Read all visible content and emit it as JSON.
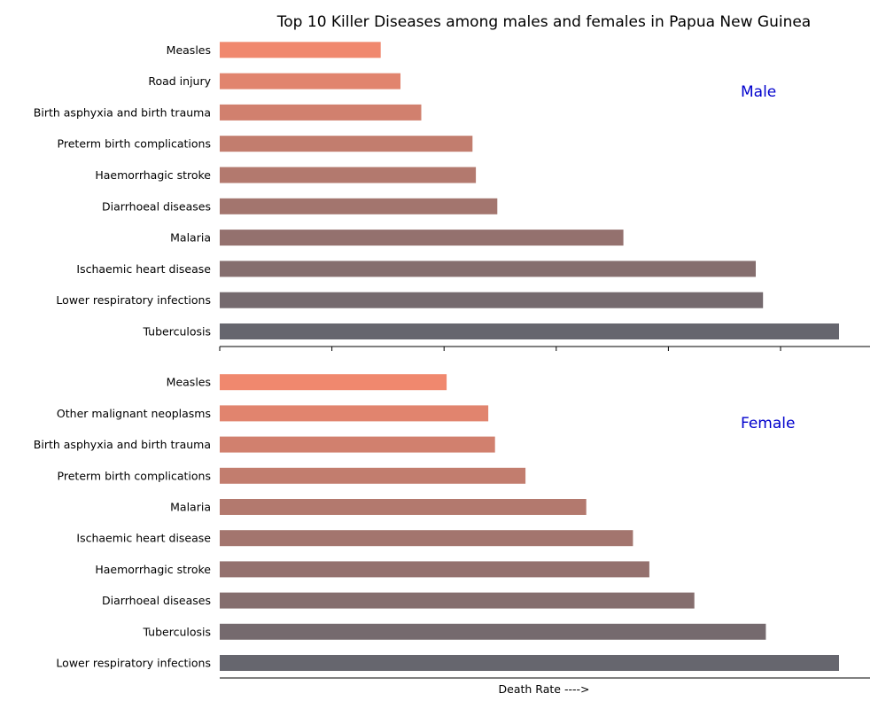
{
  "chart_data": {
    "type": "bar",
    "orientation": "horizontal",
    "title": "Top 10 Killer Diseases among males and females in Papua New Guinea",
    "xlabel": "Death Rate ---->",
    "tick_labels_shown": false,
    "colors_gradient": [
      "#66666e",
      "#f0886e"
    ],
    "panels": [
      {
        "label": "Male",
        "label_color": "#0000cd",
        "categories": [
          "Tuberculosis",
          "Lower respiratory infections",
          "Ischaemic heart disease",
          "Malaria",
          "Diarrhoeal diseases",
          "Haemorrhagic stroke",
          "Preterm birth complications",
          "Birth asphyxia and birth trauma",
          "Road injury",
          "Measles"
        ],
        "values": [
          110,
          96.5,
          95.2,
          71.7,
          49.3,
          45.5,
          44.9,
          35.8,
          32.1,
          28.6
        ]
      },
      {
        "label": "Female",
        "label_color": "#0000cd",
        "categories": [
          "Lower respiratory infections",
          "Tuberculosis",
          "Diarrhoeal diseases",
          "Haemorrhagic stroke",
          "Ischaemic heart disease",
          "Malaria",
          "Preterm birth complications",
          "Birth asphyxia and birth trauma",
          "Other malignant neoplasms",
          "Measles"
        ],
        "values": [
          110,
          97.0,
          84.3,
          76.3,
          73.4,
          65.1,
          54.3,
          48.9,
          47.7,
          40.3
        ]
      }
    ]
  }
}
